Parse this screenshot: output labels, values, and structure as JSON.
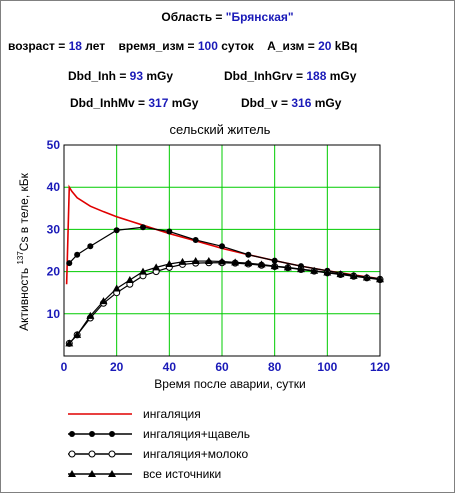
{
  "header": {
    "region_label": "Область = ",
    "region_value": "\"Брянская\"",
    "age_label": "возраст = ",
    "age_value": "18",
    "age_unit": "лет",
    "time_label": "время_изм = ",
    "time_value": "100",
    "time_unit": "суток",
    "activity_label": "А_изм = ",
    "activity_value": "20",
    "activity_unit": "kBq",
    "dbd_inh_label": "Dbd_Inh = ",
    "dbd_inh_value": "93",
    "dbd_inh_unit": "mGy",
    "dbd_inhgrv_label": "Dbd_InhGrv = ",
    "dbd_inhgrv_value": "188",
    "dbd_inhgrv_unit": "mGy",
    "dbd_inhmv_label": "Dbd_InhMv = ",
    "dbd_inhmv_value": "317",
    "dbd_inhmv_unit": "mGy",
    "dbd_v_label": "Dbd_v = ",
    "dbd_v_value": "316",
    "dbd_v_unit": "mGy"
  },
  "chart_data": {
    "type": "line",
    "title": "сельский житель",
    "xlabel": "Время после аварии, сутки",
    "ylabel": "137Cs в теле, кБк",
    "ylabel_prefix": "Активность ",
    "ylabel_sup": "137",
    "ylabel_rest": "Cs в теле, кБк",
    "xlim": [
      0,
      120
    ],
    "ylim": [
      0,
      50
    ],
    "x_ticks": [
      0,
      20,
      40,
      60,
      80,
      100,
      120
    ],
    "y_ticks": [
      10,
      20,
      30,
      40,
      50
    ],
    "grid": true,
    "colors": {
      "grid": "#00cc00",
      "axis": "#1a1ab8",
      "inhalation": "#e00000",
      "series": "#000000"
    },
    "series": [
      {
        "name": "ингаляция",
        "marker": "none",
        "x": [
          1,
          2,
          3,
          5,
          10,
          15,
          20,
          30,
          40,
          50,
          60,
          70,
          80,
          90,
          100,
          110,
          120
        ],
        "values": [
          17,
          40,
          39,
          37.5,
          35.5,
          34.2,
          33,
          31,
          29,
          27.3,
          25.5,
          24,
          22.6,
          21.3,
          20.2,
          19.2,
          18.3
        ]
      },
      {
        "name": "ингаляция+щавель",
        "marker": "filled-circle",
        "x": [
          2,
          5,
          10,
          20,
          30,
          40,
          50,
          60,
          70,
          80,
          90,
          100,
          110,
          120
        ],
        "values": [
          22,
          24,
          26,
          29.8,
          30.5,
          29.5,
          27.5,
          26,
          24,
          22.6,
          21.3,
          20.2,
          19.1,
          18.3
        ]
      },
      {
        "name": "ингаляция+молоко",
        "marker": "open-circle",
        "x": [
          2,
          5,
          10,
          15,
          20,
          25,
          30,
          35,
          40,
          45,
          50,
          55,
          60,
          65,
          70,
          75,
          80,
          85,
          90,
          95,
          100,
          105,
          110,
          115,
          120
        ],
        "values": [
          3,
          5,
          9,
          12.5,
          15,
          17,
          19,
          20,
          21,
          21.7,
          22,
          22.1,
          22.1,
          22,
          21.8,
          21.5,
          21.2,
          20.9,
          20.5,
          20.1,
          19.7,
          19.3,
          18.9,
          18.5,
          18.1
        ]
      },
      {
        "name": "все источники",
        "marker": "filled-triangle",
        "x": [
          2,
          5,
          10,
          15,
          20,
          25,
          30,
          35,
          40,
          45,
          50,
          55,
          60,
          65,
          70,
          75,
          80,
          85,
          90,
          95,
          100,
          105,
          110,
          115,
          120
        ],
        "values": [
          3,
          5,
          9.5,
          13,
          16,
          18,
          20,
          21,
          21.8,
          22.3,
          22.5,
          22.5,
          22.4,
          22.2,
          22,
          21.7,
          21.3,
          21,
          20.6,
          20.2,
          19.8,
          19.4,
          19,
          18.6,
          18.2
        ]
      }
    ]
  }
}
